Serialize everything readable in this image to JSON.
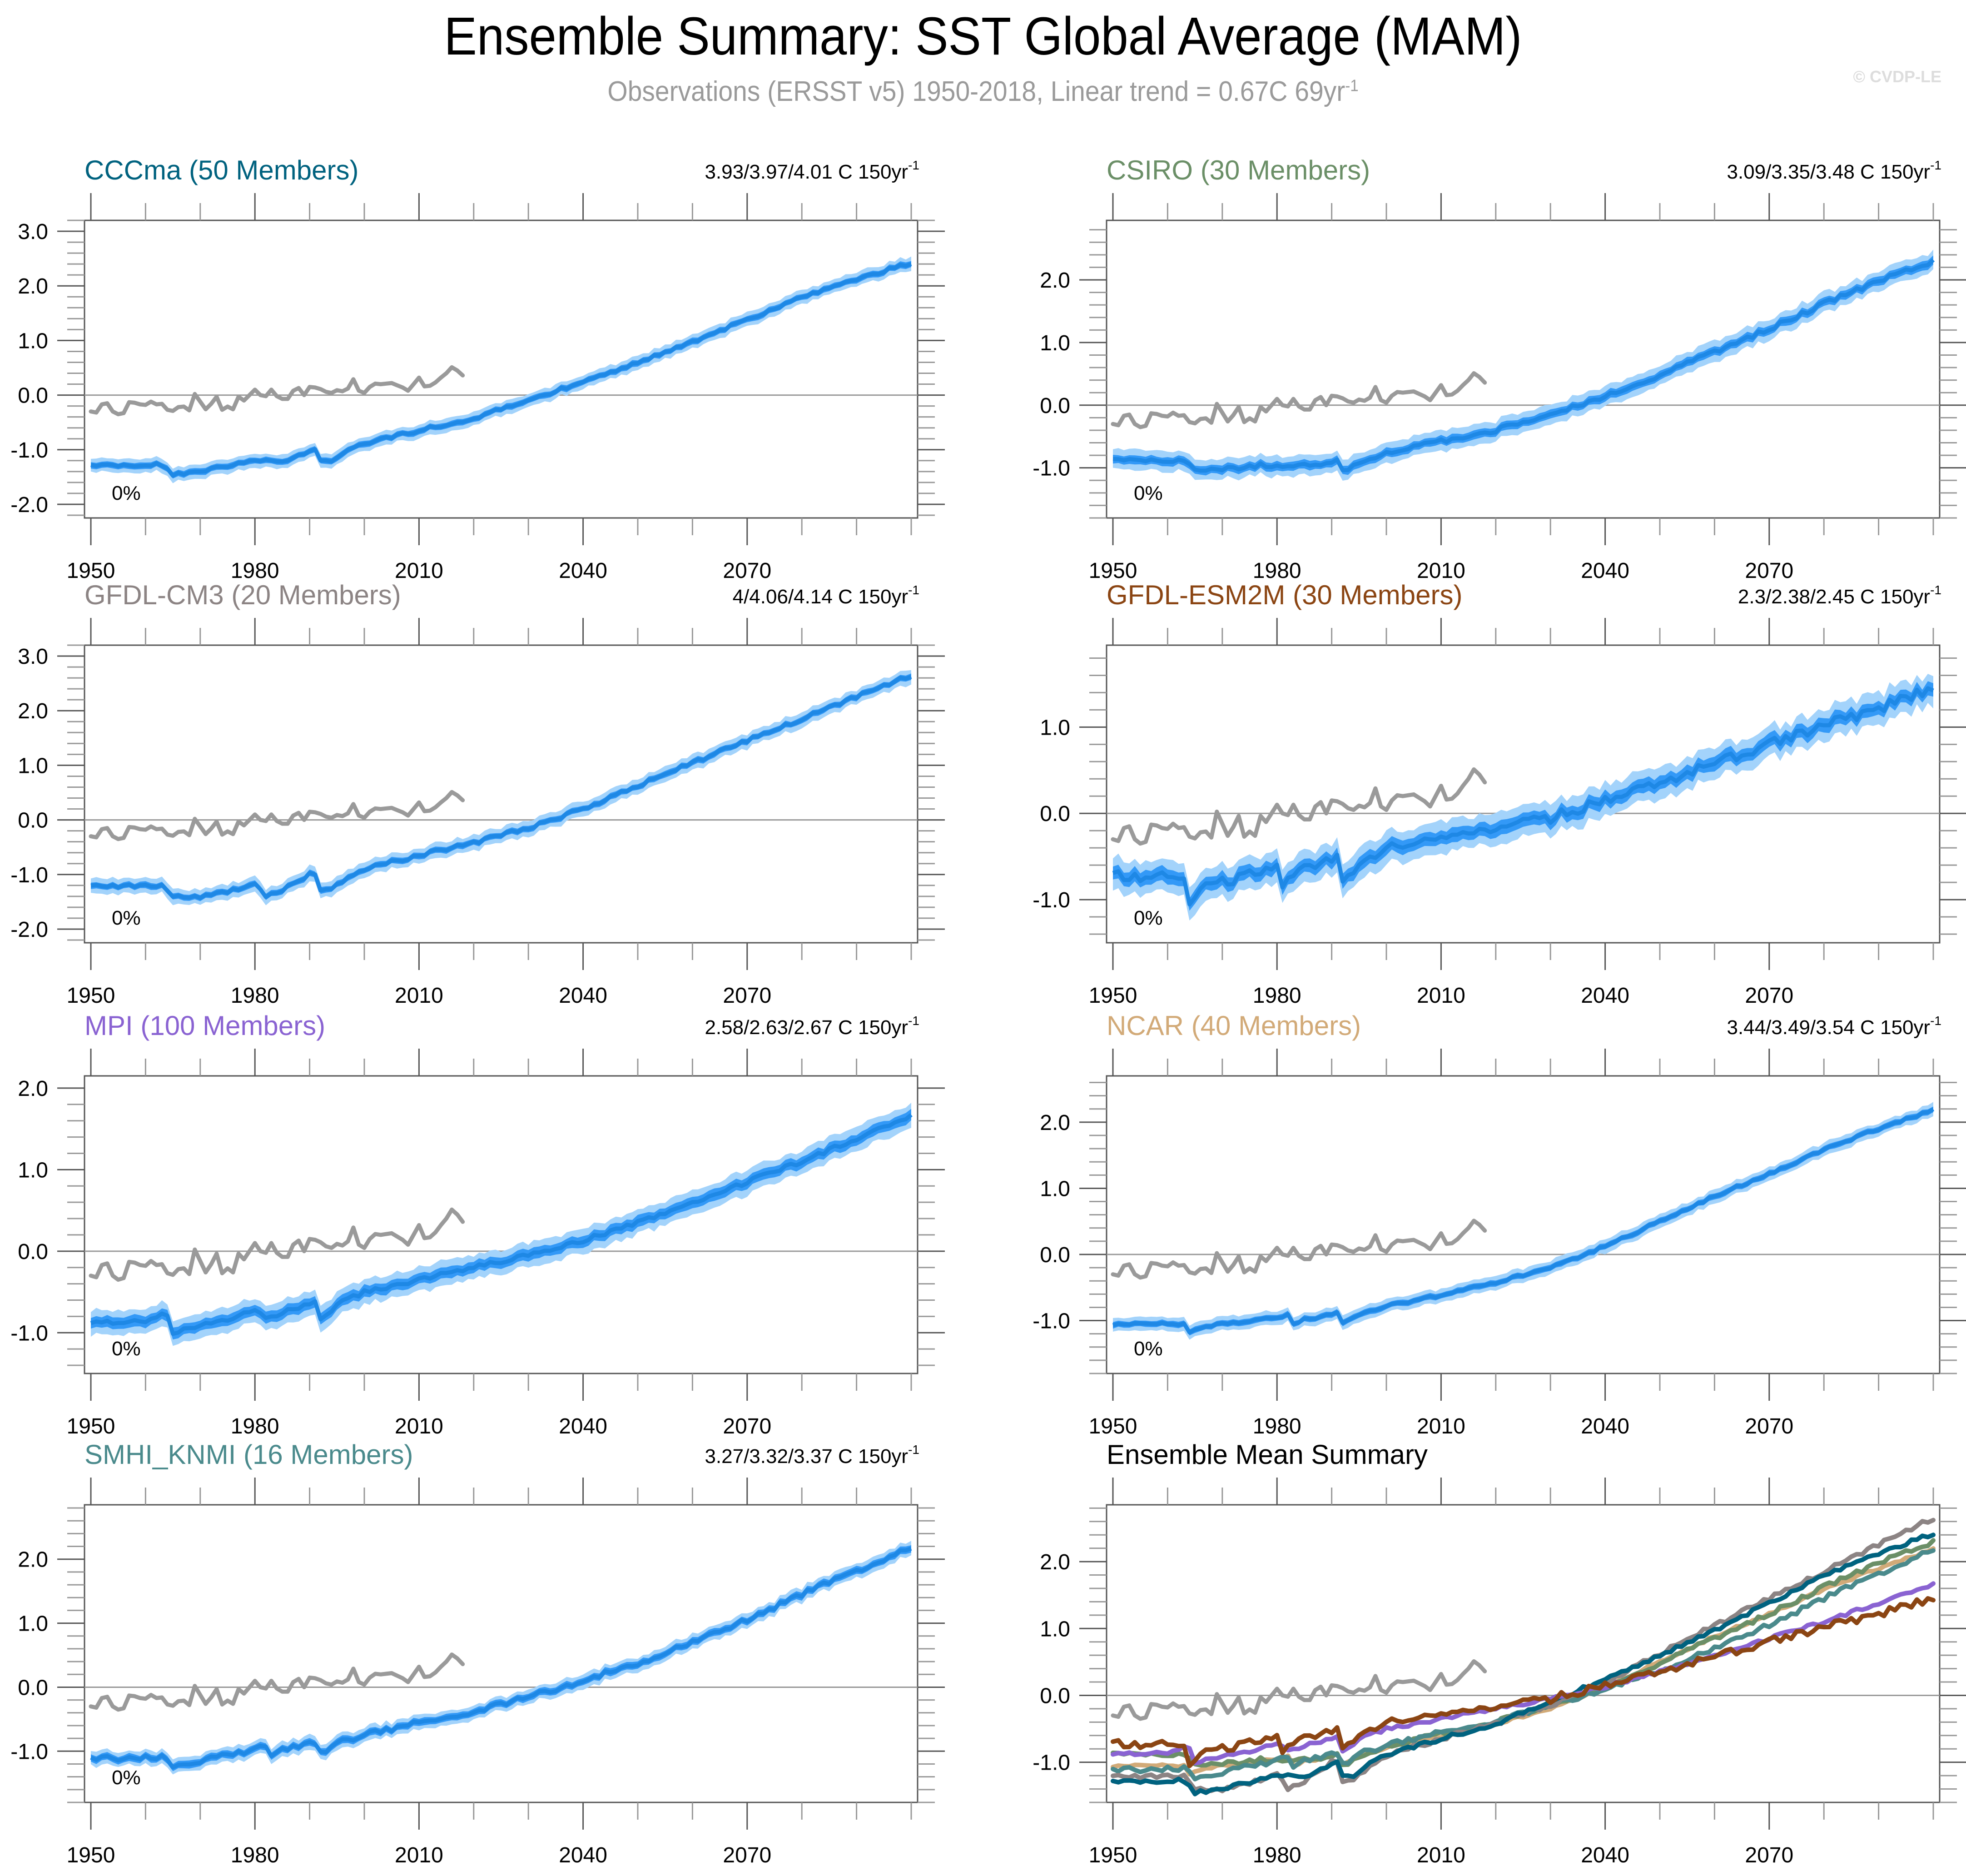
{
  "header": {
    "title": "Ensemble Summary: SST Global Average (MAM)",
    "subtitle_text": "Observations (ERSST v5) 1950-2018, Linear trend = 0.67C 69yr",
    "subtitle_sup": "-1",
    "watermark": "© CVDP-LE"
  },
  "chart_data": {
    "type": "line",
    "figure_title": "Ensemble Summary: SST Global Average (MAM)",
    "xlim": [
      1950,
      2100
    ],
    "x_major_ticks": [
      1950,
      1980,
      2010,
      2040,
      2070
    ],
    "x_minor_step": 10,
    "y_minor_step": 0.2,
    "zero_line": true,
    "band_colors": {
      "outer": "#a3d3fb",
      "inner": "#3399f7",
      "mean": "#1e88e5"
    },
    "obs_color": "#9a9a9a",
    "observations": {
      "name": "ERSST v5",
      "start_year": 1950,
      "values": [
        -0.3,
        -0.32,
        -0.17,
        -0.15,
        -0.3,
        -0.35,
        -0.33,
        -0.13,
        -0.14,
        -0.17,
        -0.18,
        -0.12,
        -0.17,
        -0.16,
        -0.27,
        -0.29,
        -0.22,
        -0.21,
        -0.28,
        0.02,
        -0.12,
        -0.26,
        -0.16,
        -0.03,
        -0.27,
        -0.21,
        -0.26,
        -0.03,
        -0.1,
        0.0,
        0.1,
        0.0,
        -0.02,
        0.1,
        -0.02,
        -0.07,
        -0.07,
        0.08,
        0.13,
        0.0,
        0.15,
        0.14,
        0.11,
        0.06,
        0.04,
        0.09,
        0.07,
        0.12,
        0.29,
        0.08,
        0.04,
        0.15,
        0.21,
        0.2,
        0.21,
        0.22,
        0.18,
        0.14,
        0.08,
        0.2,
        0.32,
        0.16,
        0.17,
        0.23,
        0.32,
        0.4,
        0.51,
        0.45,
        0.36
      ],
      "trend_label": "Linear trend = 0.67C 69yr-1"
    },
    "panels": [
      {
        "id": "cccma",
        "title": "CCCma (50 Members)",
        "title_color": "#00627f",
        "trend": "3.93/3.97/4.01 C 150yr",
        "trend_sup": "-1",
        "pct_label": "0%",
        "ylim": [
          -2.25,
          3.2
        ],
        "y_ticks": [
          -2.0,
          -1.0,
          0.0,
          1.0,
          2.0,
          3.0
        ],
        "y_tick_labels": [
          "-2.0",
          "-1.0",
          "0.0",
          "1.0",
          "2.0",
          "3.0"
        ],
        "inner_spread": 0.05,
        "outer_spread": 0.11,
        "noise": 0.03,
        "mean_anchors": [
          [
            1950,
            -1.3
          ],
          [
            1963,
            -1.27
          ],
          [
            1965,
            -1.45
          ],
          [
            1970,
            -1.4
          ],
          [
            1975,
            -1.3
          ],
          [
            1980,
            -1.2
          ],
          [
            1985,
            -1.21
          ],
          [
            1990,
            -1.04
          ],
          [
            1991,
            -0.98
          ],
          [
            1992,
            -1.18
          ],
          [
            1994,
            -1.2
          ],
          [
            1996,
            -1.05
          ],
          [
            2000,
            -0.88
          ],
          [
            2010,
            -0.65
          ],
          [
            2020,
            -0.42
          ],
          [
            2030,
            -0.1
          ],
          [
            2040,
            0.25
          ],
          [
            2050,
            0.6
          ],
          [
            2060,
            0.98
          ],
          [
            2070,
            1.38
          ],
          [
            2080,
            1.78
          ],
          [
            2090,
            2.12
          ],
          [
            2100,
            2.42
          ]
        ]
      },
      {
        "id": "csiro",
        "title": "CSIRO (30 Members)",
        "title_color": "#6b8f67",
        "trend": "3.09/3.35/3.48 C 150yr",
        "trend_sup": "-1",
        "pct_label": "0%",
        "ylim": [
          -1.8,
          2.95
        ],
        "y_ticks": [
          -1.0,
          0.0,
          1.0,
          2.0
        ],
        "y_tick_labels": [
          "-1.0",
          "0.0",
          "1.0",
          "2.0"
        ],
        "inner_spread": 0.06,
        "outer_spread": 0.14,
        "noise": 0.035,
        "mean_anchors": [
          [
            1950,
            -0.88
          ],
          [
            1963,
            -0.9
          ],
          [
            1965,
            -1.05
          ],
          [
            1970,
            -1.03
          ],
          [
            1975,
            -0.97
          ],
          [
            1980,
            -0.95
          ],
          [
            1985,
            -0.97
          ],
          [
            1990,
            -0.9
          ],
          [
            1991,
            -0.87
          ],
          [
            1992,
            -1.05
          ],
          [
            1996,
            -0.88
          ],
          [
            2000,
            -0.75
          ],
          [
            2010,
            -0.58
          ],
          [
            2020,
            -0.4
          ],
          [
            2030,
            -0.15
          ],
          [
            2040,
            0.15
          ],
          [
            2050,
            0.48
          ],
          [
            2060,
            0.85
          ],
          [
            2070,
            1.22
          ],
          [
            2080,
            1.62
          ],
          [
            2090,
            1.98
          ],
          [
            2100,
            2.3
          ]
        ]
      },
      {
        "id": "gfdl-cm3",
        "title": "GFDL-CM3 (20 Members)",
        "title_color": "#8c8484",
        "trend": "4/4.06/4.14 C 150yr",
        "trend_sup": "-1",
        "pct_label": "0%",
        "ylim": [
          -2.25,
          3.2
        ],
        "y_ticks": [
          -2.0,
          -1.0,
          0.0,
          1.0,
          2.0,
          3.0
        ],
        "y_tick_labels": [
          "-2.0",
          "-1.0",
          "0.0",
          "1.0",
          "2.0",
          "3.0"
        ],
        "inner_spread": 0.05,
        "outer_spread": 0.12,
        "noise": 0.035,
        "mean_anchors": [
          [
            1950,
            -1.2
          ],
          [
            1963,
            -1.22
          ],
          [
            1965,
            -1.42
          ],
          [
            1970,
            -1.4
          ],
          [
            1975,
            -1.3
          ],
          [
            1980,
            -1.18
          ],
          [
            1982,
            -1.38
          ],
          [
            1985,
            -1.28
          ],
          [
            1990,
            -1.0
          ],
          [
            1991,
            -0.98
          ],
          [
            1992,
            -1.32
          ],
          [
            1994,
            -1.25
          ],
          [
            2000,
            -0.9
          ],
          [
            2010,
            -0.65
          ],
          [
            2020,
            -0.42
          ],
          [
            2030,
            -0.15
          ],
          [
            2040,
            0.2
          ],
          [
            2050,
            0.62
          ],
          [
            2060,
            1.05
          ],
          [
            2070,
            1.45
          ],
          [
            2080,
            1.85
          ],
          [
            2090,
            2.25
          ],
          [
            2100,
            2.65
          ]
        ]
      },
      {
        "id": "gfdl-esm2m",
        "title": "GFDL-ESM2M (30 Members)",
        "title_color": "#8b4513",
        "trend": "2.3/2.38/2.45 C 150yr",
        "trend_sup": "-1",
        "pct_label": "0%",
        "ylim": [
          -1.5,
          1.95
        ],
        "y_ticks": [
          -1.0,
          0.0,
          1.0
        ],
        "y_tick_labels": [
          "-1.0",
          "0.0",
          "1.0"
        ],
        "inner_spread": 0.07,
        "outer_spread": 0.16,
        "noise": 0.06,
        "mean_anchors": [
          [
            1950,
            -0.72
          ],
          [
            1963,
            -0.75
          ],
          [
            1964,
            -1.0
          ],
          [
            1966,
            -0.88
          ],
          [
            1970,
            -0.8
          ],
          [
            1975,
            -0.72
          ],
          [
            1980,
            -0.6
          ],
          [
            1981,
            -0.8
          ],
          [
            1985,
            -0.65
          ],
          [
            1990,
            -0.52
          ],
          [
            1991,
            -0.5
          ],
          [
            1992,
            -0.82
          ],
          [
            1996,
            -0.55
          ],
          [
            2000,
            -0.4
          ],
          [
            2010,
            -0.28
          ],
          [
            2020,
            -0.18
          ],
          [
            2030,
            -0.05
          ],
          [
            2040,
            0.15
          ],
          [
            2050,
            0.35
          ],
          [
            2060,
            0.58
          ],
          [
            2070,
            0.8
          ],
          [
            2080,
            1.02
          ],
          [
            2090,
            1.22
          ],
          [
            2100,
            1.46
          ]
        ]
      },
      {
        "id": "mpi",
        "title": "MPI (100 Members)",
        "title_color": "#8a63d2",
        "trend": "2.58/2.63/2.67 C 150yr",
        "trend_sup": "-1",
        "pct_label": "0%",
        "ylim": [
          -1.5,
          2.15
        ],
        "y_ticks": [
          -1.0,
          0.0,
          1.0,
          2.0
        ],
        "y_tick_labels": [
          "-1.0",
          "0.0",
          "1.0",
          "2.0"
        ],
        "inner_spread": 0.06,
        "outer_spread": 0.13,
        "noise": 0.025,
        "mean_anchors": [
          [
            1950,
            -0.88
          ],
          [
            1960,
            -0.85
          ],
          [
            1963,
            -0.78
          ],
          [
            1964,
            -0.8
          ],
          [
            1965,
            -1.0
          ],
          [
            1970,
            -0.9
          ],
          [
            1975,
            -0.85
          ],
          [
            1980,
            -0.72
          ],
          [
            1982,
            -0.84
          ],
          [
            1985,
            -0.75
          ],
          [
            1990,
            -0.65
          ],
          [
            1991,
            -0.62
          ],
          [
            1992,
            -0.82
          ],
          [
            1996,
            -0.62
          ],
          [
            2000,
            -0.5
          ],
          [
            2010,
            -0.35
          ],
          [
            2020,
            -0.2
          ],
          [
            2030,
            -0.05
          ],
          [
            2040,
            0.13
          ],
          [
            2050,
            0.35
          ],
          [
            2060,
            0.6
          ],
          [
            2070,
            0.85
          ],
          [
            2080,
            1.1
          ],
          [
            2090,
            1.38
          ],
          [
            2100,
            1.66
          ]
        ]
      },
      {
        "id": "ncar",
        "title": "NCAR (40 Members)",
        "title_color": "#d2aa78",
        "trend": "3.44/3.49/3.54 C 150yr",
        "trend_sup": "-1",
        "pct_label": "0%",
        "ylim": [
          -1.8,
          2.7
        ],
        "y_ticks": [
          -1.0,
          0.0,
          1.0,
          2.0
        ],
        "y_tick_labels": [
          "-1.0",
          "0.0",
          "1.0",
          "2.0"
        ],
        "inner_spread": 0.04,
        "outer_spread": 0.09,
        "noise": 0.02,
        "mean_anchors": [
          [
            1950,
            -1.05
          ],
          [
            1963,
            -1.05
          ],
          [
            1964,
            -1.18
          ],
          [
            1966,
            -1.1
          ],
          [
            1970,
            -1.05
          ],
          [
            1975,
            -1.02
          ],
          [
            1980,
            -0.95
          ],
          [
            1982,
            -0.92
          ],
          [
            1983,
            -1.05
          ],
          [
            1985,
            -0.98
          ],
          [
            1990,
            -0.92
          ],
          [
            1991,
            -0.88
          ],
          [
            1992,
            -1.02
          ],
          [
            1996,
            -0.88
          ],
          [
            2000,
            -0.78
          ],
          [
            2010,
            -0.62
          ],
          [
            2020,
            -0.42
          ],
          [
            2030,
            -0.2
          ],
          [
            2040,
            0.12
          ],
          [
            2050,
            0.5
          ],
          [
            2060,
            0.88
          ],
          [
            2070,
            1.22
          ],
          [
            2080,
            1.58
          ],
          [
            2090,
            1.9
          ],
          [
            2100,
            2.18
          ]
        ]
      },
      {
        "id": "smhi-knmi",
        "title": "SMHI_KNMI (16 Members)",
        "title_color": "#4a8a8c",
        "trend": "3.27/3.32/3.37 C 150yr",
        "trend_sup": "-1",
        "pct_label": "0%",
        "ylim": [
          -1.8,
          2.85
        ],
        "y_ticks": [
          -1.0,
          0.0,
          1.0,
          2.0
        ],
        "y_tick_labels": [
          "-1.0",
          "0.0",
          "1.0",
          "2.0"
        ],
        "inner_spread": 0.05,
        "outer_spread": 0.1,
        "noise": 0.04,
        "mean_anchors": [
          [
            1950,
            -1.12
          ],
          [
            1963,
            -1.1
          ],
          [
            1965,
            -1.25
          ],
          [
            1970,
            -1.15
          ],
          [
            1975,
            -1.05
          ],
          [
            1980,
            -0.98
          ],
          [
            1982,
            -0.92
          ],
          [
            1983,
            -1.05
          ],
          [
            1985,
            -0.98
          ],
          [
            1990,
            -0.88
          ],
          [
            1991,
            -0.86
          ],
          [
            1992,
            -1.02
          ],
          [
            1996,
            -0.85
          ],
          [
            2000,
            -0.75
          ],
          [
            2010,
            -0.55
          ],
          [
            2020,
            -0.38
          ],
          [
            2030,
            -0.15
          ],
          [
            2040,
            0.1
          ],
          [
            2050,
            0.38
          ],
          [
            2060,
            0.7
          ],
          [
            2070,
            1.05
          ],
          [
            2080,
            1.45
          ],
          [
            2090,
            1.82
          ],
          [
            2100,
            2.18
          ]
        ]
      }
    ],
    "summary_panel": {
      "title": "Ensemble Mean Summary",
      "ylim": [
        -1.6,
        2.85
      ],
      "y_ticks": [
        -1.0,
        0.0,
        1.0,
        2.0
      ],
      "y_tick_labels": [
        "-1.0",
        "0.0",
        "1.0",
        "2.0"
      ],
      "series_order": [
        "ncar",
        "csiro",
        "smhi-knmi",
        "gfdl-cm3",
        "cccma",
        "mpi",
        "gfdl-esm2m"
      ]
    },
    "xlabel": "",
    "ylabel": ""
  }
}
